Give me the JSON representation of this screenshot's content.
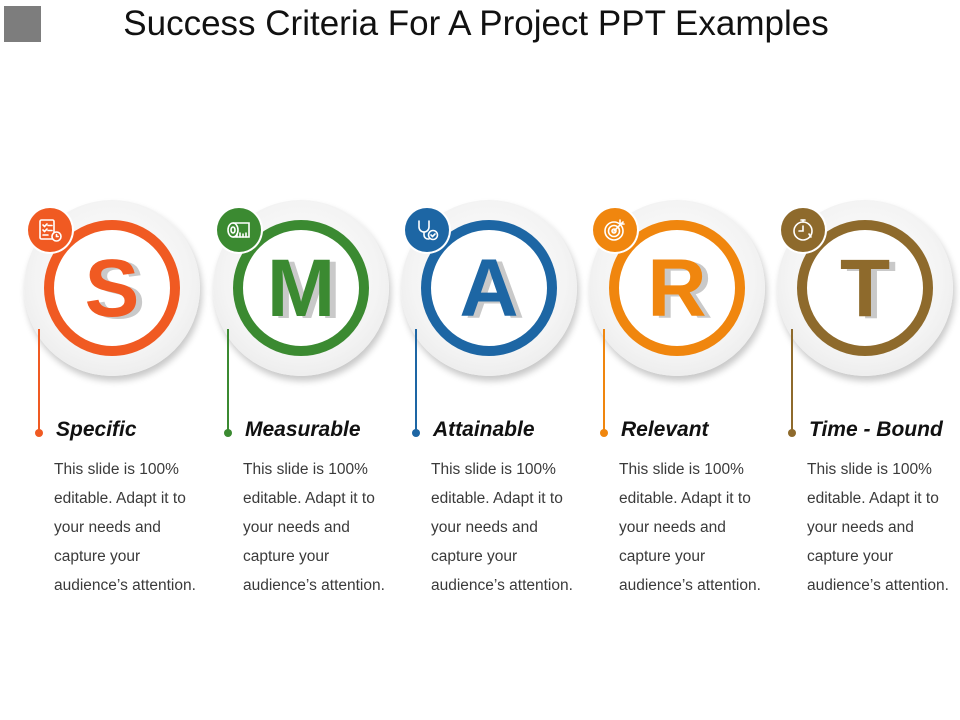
{
  "slide": {
    "title": "Success Criteria For A Project PPT Examples"
  },
  "items": [
    {
      "letter": "S",
      "heading": "Specific",
      "description": "This slide is 100% editable. Adapt it to your needs and capture your audience’s attention.",
      "icon": "checklist-clock-icon",
      "color": "#f05a22"
    },
    {
      "letter": "M",
      "heading": "Measurable",
      "description": "This slide is 100% editable. Adapt it to your needs and capture your audience’s attention.",
      "icon": "measuring-tape-icon",
      "color": "#3b8a31"
    },
    {
      "letter": "A",
      "heading": "Attainable",
      "description": "This slide is 100% editable. Adapt it to your needs and capture your audience’s attention.",
      "icon": "stethoscope-check-icon",
      "color": "#1d66a4"
    },
    {
      "letter": "R",
      "heading": "Relevant",
      "description": "This slide is 100% editable. Adapt it to your needs and capture your audience’s attention.",
      "icon": "target-arrow-icon",
      "color": "#f0860e"
    },
    {
      "letter": "T",
      "heading": "Time - Bound",
      "description": "This slide is 100% editable. Adapt it to your needs and capture your audience’s attention.",
      "icon": "stopwatch-icon",
      "color": "#8e6a2c"
    }
  ]
}
